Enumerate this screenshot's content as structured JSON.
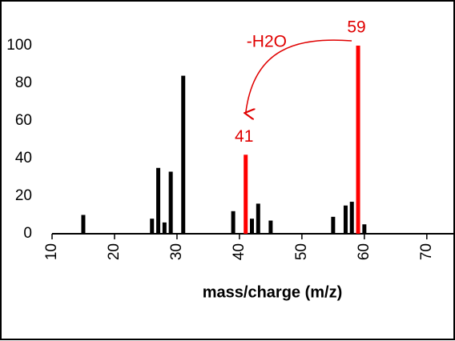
{
  "chart_data": {
    "type": "bar",
    "x_label": "mass/charge (m/z)",
    "x": [
      15,
      26,
      27,
      28,
      29,
      31,
      39,
      41,
      42,
      43,
      45,
      55,
      57,
      58,
      59,
      60
    ],
    "values": [
      10,
      8,
      35,
      6,
      33,
      84,
      12,
      42,
      8,
      16,
      7,
      9,
      15,
      17,
      100,
      5
    ],
    "colors": [
      "#000000",
      "#000000",
      "#000000",
      "#000000",
      "#000000",
      "#000000",
      "#000000",
      "#ff0000",
      "#000000",
      "#000000",
      "#000000",
      "#000000",
      "#000000",
      "#000000",
      "#ff0000",
      "#000000"
    ],
    "xlim": [
      10,
      74
    ],
    "xticks": [
      10,
      20,
      30,
      40,
      50,
      60,
      70
    ],
    "ylim": [
      0,
      100
    ],
    "yticks": [
      0,
      20,
      40,
      60,
      80,
      100
    ],
    "annotations": [
      {
        "label": "59",
        "x": 59
      },
      {
        "label": "41",
        "x": 41
      },
      {
        "label": "-H2O",
        "from": 59,
        "to": 41
      }
    ]
  }
}
